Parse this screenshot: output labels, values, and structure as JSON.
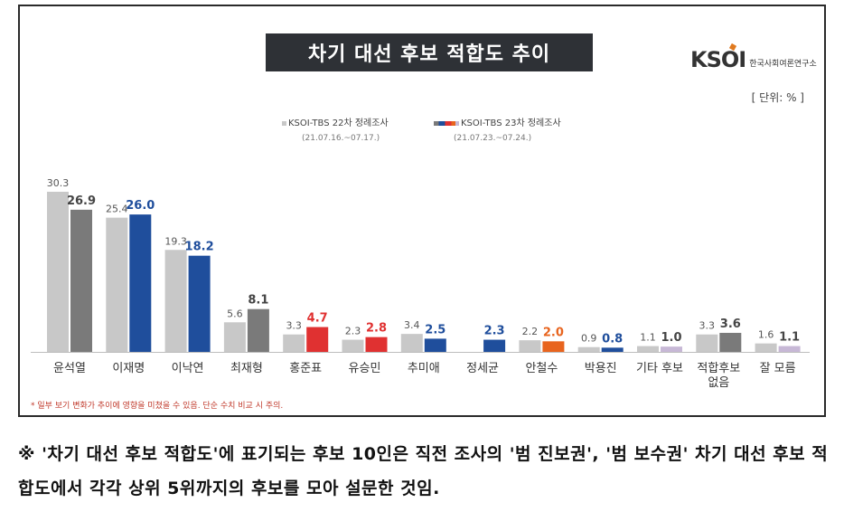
{
  "title": "차기 대선 후보 적합도 추이",
  "logo": {
    "mark": "KSOI",
    "sub": "한국사회여론연구소"
  },
  "unit": "[ 단위: % ]",
  "note": "* 일부 보기 변화가 추이에 영향을 미쳤을 수 있음. 단순 수치 비교 시 주의.",
  "footer": "※ '차기 대선 후보 적합도'에 표기되는 후보 10인은 직전 조사의 '범 진보권', '범 보수권' 차기 대선 후보 적합도에서 각각 상위 5위까지의 후보를 모아 설문한 것임.",
  "colors": {
    "s22": "#c8c8c8",
    "s23_conservative": "#7a7a7a",
    "s23_democratic": "#1f4e9c",
    "s23_red": "#e03131",
    "s23_orange": "#e8641e",
    "s23_purple": "#c7b8d6",
    "label_blue": "#1f4e9c",
    "label_red": "#e03131",
    "label_orange": "#e8641e"
  },
  "chart_data": {
    "type": "bar",
    "categories": [
      "윤석열",
      "이재명",
      "이낙연",
      "최재형",
      "홍준표",
      "유승민",
      "추미애",
      "정세균",
      "안철수",
      "박용진",
      "기타 후보",
      "적합후보 없음",
      "잘 모름"
    ],
    "series": [
      {
        "name": "KSOI-TBS 22차 정례조사",
        "period": "(21.07.16.~07.17.)",
        "values": [
          30.3,
          25.4,
          19.3,
          5.6,
          3.3,
          2.3,
          3.4,
          null,
          2.2,
          0.9,
          1.1,
          3.3,
          1.6
        ]
      },
      {
        "name": "KSOI-TBS 23차 정례조사",
        "period": "(21.07.23.~07.24.)",
        "values": [
          26.9,
          26.0,
          18.2,
          8.1,
          4.7,
          2.8,
          2.5,
          2.3,
          2.0,
          0.8,
          1.0,
          3.6,
          1.1
        ]
      }
    ],
    "bar_colors_s23": [
      "s23_conservative",
      "s23_democratic",
      "s23_democratic",
      "s23_conservative",
      "s23_red",
      "s23_red",
      "s23_democratic",
      "s23_democratic",
      "s23_orange",
      "s23_democratic",
      "s23_purple",
      "s23_conservative",
      "s23_purple"
    ],
    "label_colors_s23": [
      "",
      "label_blue",
      "label_blue",
      "",
      "label_red",
      "label_red",
      "label_blue",
      "label_blue",
      "label_orange",
      "label_blue",
      "",
      "",
      ""
    ],
    "labels_s22": [
      "30.3",
      "25.4",
      "19.3",
      "5.6",
      "3.3",
      "2.3",
      "3.4",
      "",
      "2.2",
      "0.9",
      "1.1",
      "3.3",
      "1.6"
    ],
    "labels_s23": [
      "26.9",
      "26.0",
      "18.2",
      "8.1",
      "4.7",
      "2.8",
      "2.5",
      "2.3",
      "2.0",
      "0.8",
      "1.0",
      "3.6",
      "1.1"
    ],
    "ylim": [
      0,
      30.3
    ],
    "legend_position": "top-left"
  }
}
